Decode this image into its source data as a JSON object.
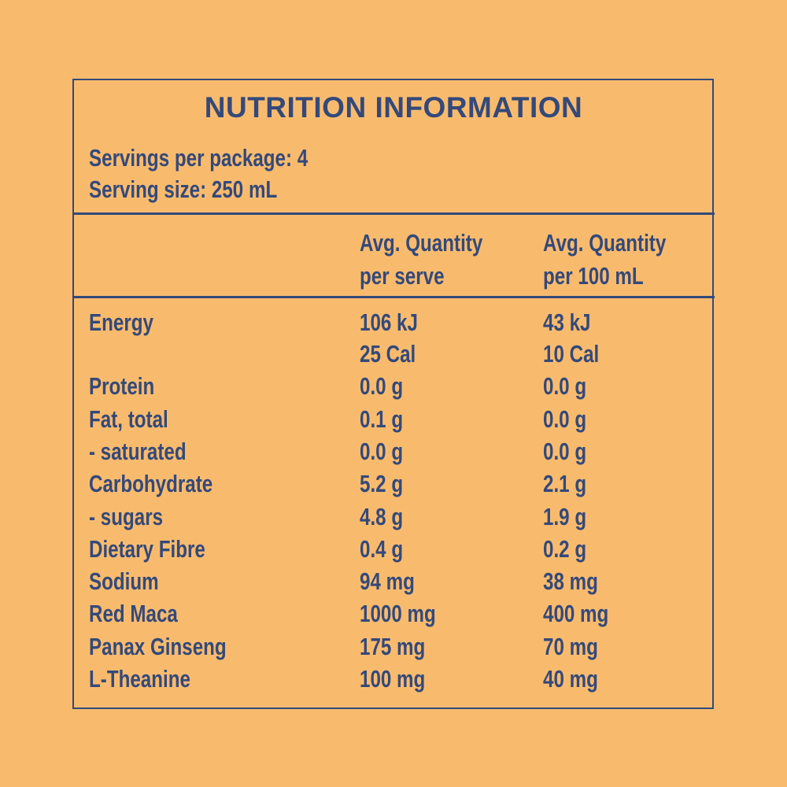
{
  "title": "NUTRITION INFORMATION",
  "servings": [
    "Servings per package: 4",
    "Serving size: 250 mL"
  ],
  "table": {
    "header": [
      [
        "Avg. Quantity",
        "per serve"
      ],
      [
        "Avg. Quantity",
        "per 100 mL"
      ]
    ],
    "rows": [
      [
        "Energy",
        [
          "106 kJ",
          "25 Cal"
        ],
        [
          "43 kJ",
          "10 Cal"
        ]
      ],
      [
        "Protein",
        "0.0 g",
        "0.0 g"
      ],
      [
        "Fat, total",
        "0.1 g",
        "0.0 g"
      ],
      [
        "- saturated",
        "0.0 g",
        "0.0 g"
      ],
      [
        "Carbohydrate",
        "5.2 g",
        "2.1 g"
      ],
      [
        "- sugars",
        "4.8 g",
        "1.9 g"
      ],
      [
        "Dietary Fibre",
        "0.4 g",
        "0.2 g"
      ],
      [
        "Sodium",
        "94 mg",
        "38 mg"
      ],
      [
        "Red Maca",
        "1000 mg",
        "400 mg"
      ],
      [
        "Panax Ginseng",
        "175 mg",
        "70 mg"
      ],
      [
        "L-Theanine",
        "100 mg",
        "40 mg"
      ]
    ]
  }
}
